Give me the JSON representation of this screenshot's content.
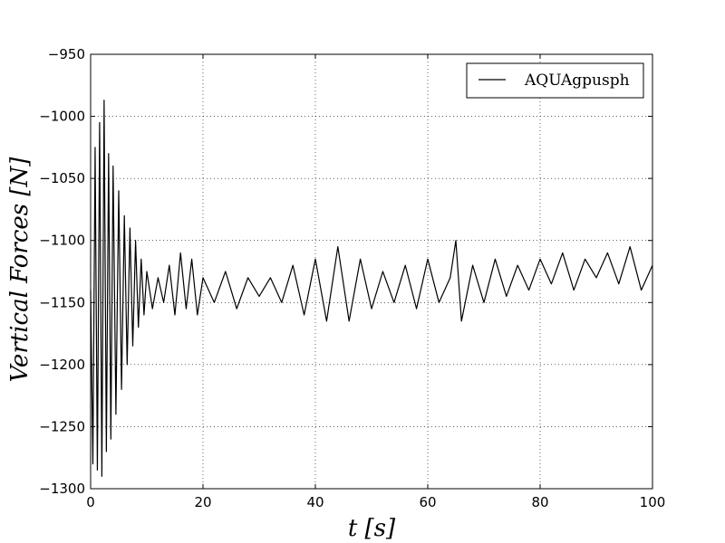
{
  "chart_data": {
    "type": "line",
    "title": "",
    "xlabel": "t [s]",
    "ylabel": "Vertical Forces [N]",
    "xlim": [
      0,
      100
    ],
    "ylim": [
      -1300,
      -950
    ],
    "x_ticks": [
      0,
      20,
      40,
      60,
      80,
      100
    ],
    "y_ticks": [
      -950,
      -1000,
      -1050,
      -1100,
      -1150,
      -1200,
      -1250,
      -1300
    ],
    "x_tick_labels": [
      "0",
      "20",
      "40",
      "60",
      "80",
      "100"
    ],
    "y_tick_labels": [
      "−950",
      "−1000",
      "−1050",
      "−1100",
      "−1150",
      "−1200",
      "−1250",
      "−1300"
    ],
    "grid": true,
    "legend_position": "top-right",
    "series": [
      {
        "name": "AQUAgpusph",
        "color": "#000000",
        "x": [
          0,
          0.4,
          0.8,
          1.2,
          1.6,
          2.0,
          2.4,
          2.8,
          3.2,
          3.6,
          4.0,
          4.5,
          5.0,
          5.5,
          6.0,
          6.5,
          7.0,
          7.5,
          8.0,
          8.5,
          9.0,
          9.5,
          10,
          11,
          12,
          13,
          14,
          15,
          16,
          17,
          18,
          19,
          20,
          22,
          24,
          26,
          28,
          30,
          32,
          34,
          36,
          38,
          40,
          42,
          44,
          46,
          48,
          50,
          52,
          54,
          56,
          58,
          60,
          62,
          64,
          65,
          66,
          68,
          70,
          72,
          74,
          76,
          78,
          80,
          82,
          84,
          86,
          88,
          90,
          92,
          94,
          96,
          98,
          100
        ],
        "y": [
          -1140,
          -1280,
          -1025,
          -1285,
          -1005,
          -1290,
          -987,
          -1270,
          -1030,
          -1260,
          -1040,
          -1240,
          -1060,
          -1220,
          -1080,
          -1200,
          -1090,
          -1185,
          -1100,
          -1170,
          -1115,
          -1160,
          -1125,
          -1155,
          -1130,
          -1150,
          -1120,
          -1160,
          -1110,
          -1155,
          -1115,
          -1160,
          -1130,
          -1150,
          -1125,
          -1155,
          -1130,
          -1145,
          -1130,
          -1150,
          -1120,
          -1160,
          -1115,
          -1165,
          -1105,
          -1165,
          -1115,
          -1155,
          -1125,
          -1150,
          -1120,
          -1155,
          -1115,
          -1150,
          -1130,
          -1100,
          -1165,
          -1120,
          -1150,
          -1115,
          -1145,
          -1120,
          -1140,
          -1115,
          -1135,
          -1110,
          -1140,
          -1115,
          -1130,
          -1110,
          -1135,
          -1105,
          -1140,
          -1120
        ]
      }
    ]
  }
}
